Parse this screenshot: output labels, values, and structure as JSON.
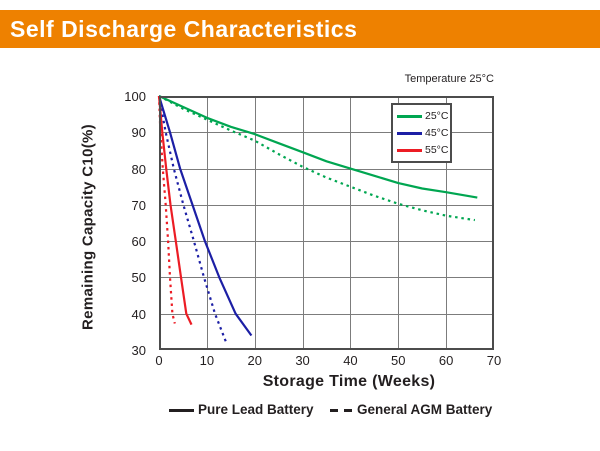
{
  "header": {
    "title": "Self Discharge Characteristics"
  },
  "colors": {
    "banner_orange": "#EE8100",
    "green": "#00A651",
    "blue": "#1C1FA5",
    "red": "#EC1C24",
    "grid": "#7C7C7C",
    "frame": "#4C4C4C",
    "text": "#231F20"
  },
  "chart": {
    "note": "Temperature 25°C"
  },
  "chart_data": {
    "type": "line",
    "title": "Self Discharge Characteristics",
    "annotation": "Temperature 25°C",
    "xlabel": "Storage Time (Weeks)",
    "ylabel": "Remaining Capacity C10(%)",
    "xlim": [
      0,
      70
    ],
    "ylim": [
      30,
      100
    ],
    "x_ticks": [
      0,
      10,
      20,
      30,
      40,
      50,
      60,
      70
    ],
    "y_ticks": [
      30,
      40,
      50,
      60,
      70,
      80,
      90,
      100
    ],
    "grid": true,
    "legend": {
      "position": "top-right",
      "items": [
        {
          "label": "25°C",
          "color": "#00A651"
        },
        {
          "label": "45°C",
          "color": "#1C1FA5"
        },
        {
          "label": "55°C",
          "color": "#EC1C24"
        }
      ]
    },
    "line_style_key": {
      "solid": "Pure Lead Battery",
      "dashed": "General AGM Battery"
    },
    "series": [
      {
        "name": "25°C Pure Lead Battery",
        "temperature": "25°C",
        "battery": "Pure Lead Battery",
        "color": "#00A651",
        "style": "solid",
        "points": [
          [
            0,
            100
          ],
          [
            5,
            97
          ],
          [
            10,
            94
          ],
          [
            15,
            91.5
          ],
          [
            20,
            89.5
          ],
          [
            25,
            87
          ],
          [
            30,
            84.5
          ],
          [
            35,
            82
          ],
          [
            40,
            80
          ],
          [
            45,
            78
          ],
          [
            50,
            76
          ],
          [
            55,
            74.5
          ],
          [
            60,
            73.5
          ],
          [
            66.5,
            72
          ]
        ]
      },
      {
        "name": "25°C General AGM Battery",
        "temperature": "25°C",
        "battery": "General AGM Battery",
        "color": "#00A651",
        "style": "dashed",
        "points": [
          [
            0,
            100
          ],
          [
            5,
            96.5
          ],
          [
            10,
            93.5
          ],
          [
            15,
            90.5
          ],
          [
            20,
            87.7
          ],
          [
            25,
            84
          ],
          [
            30,
            80.5
          ],
          [
            35,
            77.5
          ],
          [
            40,
            75
          ],
          [
            45,
            72.5
          ],
          [
            50,
            70.3
          ],
          [
            55,
            68.5
          ],
          [
            60,
            67
          ],
          [
            66,
            65.8
          ]
        ]
      },
      {
        "name": "45°C Pure Lead Battery",
        "temperature": "45°C",
        "battery": "Pure Lead Battery",
        "color": "#1C1FA5",
        "style": "solid",
        "points": [
          [
            0,
            100
          ],
          [
            2.3,
            90
          ],
          [
            4.4,
            80
          ],
          [
            7,
            70
          ],
          [
            9.6,
            60
          ],
          [
            12.6,
            50
          ],
          [
            16,
            40
          ],
          [
            19.3,
            34
          ]
        ]
      },
      {
        "name": "45°C General AGM Battery",
        "temperature": "45°C",
        "battery": "General AGM Battery",
        "color": "#1C1FA5",
        "style": "dashed",
        "points": [
          [
            0,
            100
          ],
          [
            1.4,
            90
          ],
          [
            3.1,
            80
          ],
          [
            5.1,
            70
          ],
          [
            7.3,
            60
          ],
          [
            9.4,
            50
          ],
          [
            11.7,
            40
          ],
          [
            14.2,
            31.5
          ]
        ]
      },
      {
        "name": "55°C Pure Lead Battery",
        "temperature": "55°C",
        "battery": "Pure Lead Battery",
        "color": "#EC1C24",
        "style": "solid",
        "points": [
          [
            0,
            100
          ],
          [
            0.7,
            90
          ],
          [
            1.5,
            80
          ],
          [
            2.4,
            70
          ],
          [
            3.5,
            60
          ],
          [
            4.6,
            50
          ],
          [
            5.7,
            40
          ],
          [
            6.8,
            37
          ]
        ]
      },
      {
        "name": "55°C General AGM Battery",
        "temperature": "55°C",
        "battery": "General AGM Battery",
        "color": "#EC1C24",
        "style": "dashed",
        "points": [
          [
            0,
            100
          ],
          [
            0.3,
            90
          ],
          [
            0.8,
            80
          ],
          [
            1.4,
            70
          ],
          [
            1.9,
            60
          ],
          [
            2.3,
            50
          ],
          [
            2.8,
            40
          ],
          [
            3.3,
            37.3
          ]
        ]
      }
    ]
  },
  "footer_legend": {
    "solid_label": "Pure Lead Battery",
    "dashed_label": "General AGM Battery"
  }
}
